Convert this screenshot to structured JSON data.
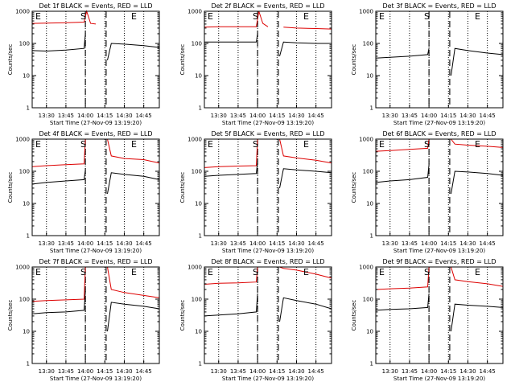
{
  "colors": {
    "events": "#000000",
    "lld": "#dd0000",
    "background": "#ffffff"
  },
  "chart_data": [
    {
      "type": "line",
      "title": "Det 1f BLACK = Events, RED = LLD",
      "ylabel": "Counts/sec",
      "xlabel": "Start Time (27-Nov-09 13:19:20)",
      "yscale": "log",
      "ylim": [
        1,
        1000
      ],
      "xlim": [
        "13:19",
        "14:57"
      ],
      "x_ticks": [
        "13:30",
        "13:45",
        "14:00",
        "14:15",
        "14:30",
        "14:45"
      ],
      "y_ticks": [
        "1",
        "10",
        "100",
        "1000"
      ],
      "markers": [
        {
          "label": "E",
          "time": "13:19"
        },
        {
          "label": "S",
          "time": "14:00"
        },
        {
          "label": "E",
          "time": "14:35"
        }
      ],
      "dashed_times": [
        "14:00",
        "14:16"
      ],
      "series": [
        {
          "color": "#dd0000",
          "x": [
            "13:19",
            "13:30",
            "13:45",
            "13:59",
            "14:01",
            "14:04",
            "14:08",
            "14:16",
            "14:17",
            "14:20",
            "14:30",
            "14:45",
            "14:57"
          ],
          "y": [
            420,
            430,
            440,
            460,
            1000,
            420,
            400,
            null,
            null,
            null,
            null,
            null,
            null
          ]
        },
        {
          "color": "#000000",
          "x": [
            "13:19",
            "13:30",
            "13:45",
            "13:59",
            "14:00",
            "14:16",
            "14:17",
            "14:20",
            "14:30",
            "14:45",
            "14:57"
          ],
          "y": [
            60,
            58,
            62,
            70,
            200,
            null,
            30,
            100,
            95,
            85,
            75
          ]
        }
      ]
    },
    {
      "type": "line",
      "title": "Det 2f BLACK = Events, RED = LLD",
      "ylabel": "Counts/sec",
      "xlabel": "Start Time (27-Nov-09 13:19:20)",
      "yscale": "log",
      "ylim": [
        1,
        1000
      ],
      "xlim": [
        "13:19",
        "14:57"
      ],
      "x_ticks": [
        "13:30",
        "13:45",
        "14:00",
        "14:15",
        "14:30",
        "14:45"
      ],
      "y_ticks": [
        "1",
        "10",
        "100",
        "1000"
      ],
      "markers": [
        {
          "label": "E",
          "time": "13:19"
        },
        {
          "label": "S",
          "time": "14:00"
        },
        {
          "label": "E",
          "time": "14:35"
        }
      ],
      "dashed_times": [
        "14:00",
        "14:16"
      ],
      "series": [
        {
          "color": "#dd0000",
          "x": [
            "13:19",
            "13:30",
            "13:45",
            "13:59",
            "14:01",
            "14:04",
            "14:08",
            "14:16",
            "14:17",
            "14:20",
            "14:30",
            "14:45",
            "14:57"
          ],
          "y": [
            320,
            330,
            330,
            330,
            1000,
            420,
            330,
            null,
            null,
            320,
            300,
            290,
            280
          ]
        },
        {
          "color": "#000000",
          "x": [
            "13:19",
            "13:30",
            "13:45",
            "13:59",
            "14:00",
            "14:16",
            "14:17",
            "14:20",
            "14:30",
            "14:45",
            "14:57"
          ],
          "y": [
            110,
            110,
            110,
            110,
            200,
            null,
            40,
            110,
            105,
            100,
            100
          ]
        }
      ]
    },
    {
      "type": "line",
      "title": "Det 3f BLACK = Events, RED = LLD",
      "ylabel": "Counts/sec",
      "xlabel": "Start Time (27-Nov-09 13:19:20)",
      "yscale": "log",
      "ylim": [
        1,
        1000
      ],
      "xlim": [
        "13:19",
        "14:57"
      ],
      "x_ticks": [
        "13:30",
        "13:45",
        "14:00",
        "14:15",
        "14:30",
        "14:45"
      ],
      "y_ticks": [
        "1",
        "10",
        "100",
        "1000"
      ],
      "markers": [
        {
          "label": "E",
          "time": "13:19"
        },
        {
          "label": "S",
          "time": "14:00"
        },
        {
          "label": "E",
          "time": "14:35"
        }
      ],
      "dashed_times": [
        "14:00",
        "14:16"
      ],
      "series": [
        {
          "color": "#000000",
          "x": [
            "13:19",
            "13:30",
            "13:45",
            "13:59",
            "14:00",
            "14:16",
            "14:17",
            "14:20",
            "14:30",
            "14:45",
            "14:57"
          ],
          "y": [
            35,
            37,
            40,
            45,
            70,
            null,
            10,
            70,
            60,
            50,
            45
          ]
        }
      ]
    },
    {
      "type": "line",
      "title": "Det 4f BLACK = Events, RED = LLD",
      "ylabel": "Counts/sec",
      "xlabel": "Start Time (27-Nov-09 13:19:20)",
      "yscale": "log",
      "ylim": [
        1,
        1000
      ],
      "xlim": [
        "13:19",
        "14:57"
      ],
      "x_ticks": [
        "13:30",
        "13:45",
        "14:00",
        "14:15",
        "14:30",
        "14:45"
      ],
      "y_ticks": [
        "1",
        "10",
        "100",
        "1000"
      ],
      "markers": [
        {
          "label": "E",
          "time": "13:19"
        },
        {
          "label": "S",
          "time": "14:00"
        },
        {
          "label": "E",
          "time": "14:45"
        }
      ],
      "dashed_times": [
        "14:00",
        "14:16"
      ],
      "series": [
        {
          "color": "#dd0000",
          "x": [
            "13:19",
            "13:30",
            "13:45",
            "13:59",
            "14:00",
            "14:16",
            "14:17",
            "14:20",
            "14:30",
            "14:45",
            "14:57"
          ],
          "y": [
            140,
            150,
            160,
            170,
            1000,
            null,
            1000,
            300,
            250,
            230,
            180
          ]
        },
        {
          "color": "#000000",
          "x": [
            "13:19",
            "13:30",
            "13:45",
            "13:59",
            "14:00",
            "14:16",
            "14:17",
            "14:20",
            "14:30",
            "14:45",
            "14:57"
          ],
          "y": [
            40,
            45,
            50,
            55,
            110,
            null,
            20,
            90,
            80,
            70,
            55
          ]
        }
      ]
    },
    {
      "type": "line",
      "title": "Det 5f BLACK = Events, RED = LLD",
      "ylabel": "Counts/sec",
      "xlabel": "Start Time (27-Nov-09 13:19:20)",
      "yscale": "log",
      "ylim": [
        1,
        1000
      ],
      "xlim": [
        "13:19",
        "14:57"
      ],
      "x_ticks": [
        "13:30",
        "13:45",
        "14:00",
        "14:15",
        "14:30",
        "14:45"
      ],
      "y_ticks": [
        "1",
        "10",
        "100",
        "1000"
      ],
      "markers": [
        {
          "label": "E",
          "time": "13:19"
        },
        {
          "label": "S",
          "time": "14:00"
        },
        {
          "label": "E",
          "time": "14:40"
        }
      ],
      "dashed_times": [
        "14:00",
        "14:16"
      ],
      "series": [
        {
          "color": "#dd0000",
          "x": [
            "13:19",
            "13:30",
            "13:45",
            "13:59",
            "14:00",
            "14:16",
            "14:17",
            "14:20",
            "14:30",
            "14:45",
            "14:57"
          ],
          "y": [
            130,
            140,
            145,
            150,
            1000,
            null,
            1000,
            300,
            260,
            220,
            180
          ]
        },
        {
          "color": "#000000",
          "x": [
            "13:19",
            "13:30",
            "13:45",
            "13:59",
            "14:00",
            "14:16",
            "14:17",
            "14:20",
            "14:30",
            "14:45",
            "14:57"
          ],
          "y": [
            70,
            75,
            80,
            85,
            200,
            null,
            30,
            120,
            110,
            100,
            90
          ]
        }
      ]
    },
    {
      "type": "line",
      "title": "Det 6f BLACK = Events, RED = LLD",
      "ylabel": "Counts/sec",
      "xlabel": "Start Time (27-Nov-09 13:19:20)",
      "yscale": "log",
      "ylim": [
        1,
        1000
      ],
      "xlim": [
        "13:19",
        "14:57"
      ],
      "x_ticks": [
        "13:30",
        "13:45",
        "14:00",
        "14:15",
        "14:30",
        "14:45"
      ],
      "y_ticks": [
        "1",
        "10",
        "100",
        "1000"
      ],
      "markers": [
        {
          "label": "E",
          "time": "13:19"
        },
        {
          "label": "S",
          "time": "14:00"
        },
        {
          "label": "E",
          "time": "14:40"
        }
      ],
      "dashed_times": [
        "14:00",
        "14:16"
      ],
      "series": [
        {
          "color": "#dd0000",
          "x": [
            "13:19",
            "13:30",
            "13:45",
            "13:59",
            "14:00",
            "14:16",
            "14:17",
            "14:20",
            "14:30",
            "14:45",
            "14:57"
          ],
          "y": [
            420,
            440,
            480,
            520,
            1000,
            null,
            1000,
            700,
            650,
            600,
            550
          ]
        },
        {
          "color": "#000000",
          "x": [
            "13:19",
            "13:30",
            "13:45",
            "13:59",
            "14:00",
            "14:16",
            "14:17",
            "14:20",
            "14:30",
            "14:45",
            "14:57"
          ],
          "y": [
            45,
            50,
            55,
            65,
            160,
            null,
            20,
            100,
            95,
            85,
            75
          ]
        }
      ]
    },
    {
      "type": "line",
      "title": "Det 7f BLACK = Events, RED = LLD",
      "ylabel": "Counts/sec",
      "xlabel": "Start Time (27-Nov-09 13:19:20)",
      "yscale": "log",
      "ylim": [
        1,
        1000
      ],
      "xlim": [
        "13:19",
        "14:57"
      ],
      "x_ticks": [
        "13:30",
        "13:45",
        "14:00",
        "14:15",
        "14:30",
        "14:45"
      ],
      "y_ticks": [
        "1",
        "10",
        "100",
        "1000"
      ],
      "markers": [
        {
          "label": "E",
          "time": "13:19"
        },
        {
          "label": "S",
          "time": "14:00"
        },
        {
          "label": "E",
          "time": "14:40"
        }
      ],
      "dashed_times": [
        "14:00",
        "14:16"
      ],
      "series": [
        {
          "color": "#dd0000",
          "x": [
            "13:19",
            "13:30",
            "13:45",
            "13:59",
            "14:00",
            "14:16",
            "14:17",
            "14:20",
            "14:30",
            "14:45",
            "14:57"
          ],
          "y": [
            85,
            90,
            95,
            100,
            1000,
            null,
            1000,
            200,
            160,
            130,
            110
          ]
        },
        {
          "color": "#000000",
          "x": [
            "13:19",
            "13:30",
            "13:45",
            "13:59",
            "14:00",
            "14:16",
            "14:17",
            "14:20",
            "14:30",
            "14:45",
            "14:57"
          ],
          "y": [
            35,
            38,
            40,
            45,
            180,
            null,
            10,
            80,
            70,
            60,
            50
          ]
        }
      ]
    },
    {
      "type": "line",
      "title": "Det 8f BLACK = Events, RED = LLD",
      "ylabel": "Counts/sec",
      "xlabel": "Start Time (27-Nov-09 13:19:20)",
      "yscale": "log",
      "ylim": [
        1,
        1000
      ],
      "xlim": [
        "13:19",
        "14:57"
      ],
      "x_ticks": [
        "13:30",
        "13:45",
        "14:00",
        "14:15",
        "14:30",
        "14:45"
      ],
      "y_ticks": [
        "1",
        "10",
        "100",
        "1000"
      ],
      "markers": [
        {
          "label": "E",
          "time": "13:19"
        },
        {
          "label": "S",
          "time": "14:00"
        },
        {
          "label": "E",
          "time": "14:35"
        }
      ],
      "dashed_times": [
        "14:00",
        "14:16"
      ],
      "series": [
        {
          "color": "#dd0000",
          "x": [
            "13:19",
            "13:30",
            "13:45",
            "13:59",
            "14:00",
            "14:16",
            "14:17",
            "14:20",
            "14:30",
            "14:45",
            "14:57"
          ],
          "y": [
            290,
            310,
            320,
            340,
            1000,
            null,
            1000,
            900,
            800,
            600,
            450
          ]
        },
        {
          "color": "#000000",
          "x": [
            "13:19",
            "13:30",
            "13:45",
            "13:59",
            "14:00",
            "14:16",
            "14:17",
            "14:20",
            "14:30",
            "14:45",
            "14:57"
          ],
          "y": [
            30,
            32,
            35,
            40,
            150,
            null,
            20,
            110,
            90,
            70,
            50
          ]
        }
      ]
    },
    {
      "type": "line",
      "title": "Det 9f BLACK = Events, RED = LLD",
      "ylabel": "Counts/sec",
      "xlabel": "Start Time (27-Nov-09 13:19:20)",
      "yscale": "log",
      "ylim": [
        1,
        1000
      ],
      "xlim": [
        "13:19",
        "14:57"
      ],
      "x_ticks": [
        "13:30",
        "13:45",
        "14:00",
        "14:15",
        "14:30",
        "14:45"
      ],
      "y_ticks": [
        "1",
        "10",
        "100",
        "1000"
      ],
      "markers": [
        {
          "label": "E",
          "time": "13:19"
        },
        {
          "label": "S",
          "time": "14:00"
        },
        {
          "label": "E",
          "time": "14:40"
        }
      ],
      "dashed_times": [
        "14:00",
        "14:16"
      ],
      "series": [
        {
          "color": "#dd0000",
          "x": [
            "13:19",
            "13:30",
            "13:45",
            "13:59",
            "14:00",
            "14:16",
            "14:17",
            "14:20",
            "14:30",
            "14:45",
            "14:57"
          ],
          "y": [
            200,
            210,
            220,
            240,
            1000,
            null,
            1000,
            400,
            350,
            300,
            250
          ]
        },
        {
          "color": "#000000",
          "x": [
            "13:19",
            "13:30",
            "13:45",
            "13:59",
            "14:00",
            "14:16",
            "14:17",
            "14:20",
            "14:30",
            "14:45",
            "14:57"
          ],
          "y": [
            45,
            48,
            50,
            55,
            150,
            null,
            10,
            70,
            65,
            60,
            55
          ]
        }
      ]
    }
  ]
}
